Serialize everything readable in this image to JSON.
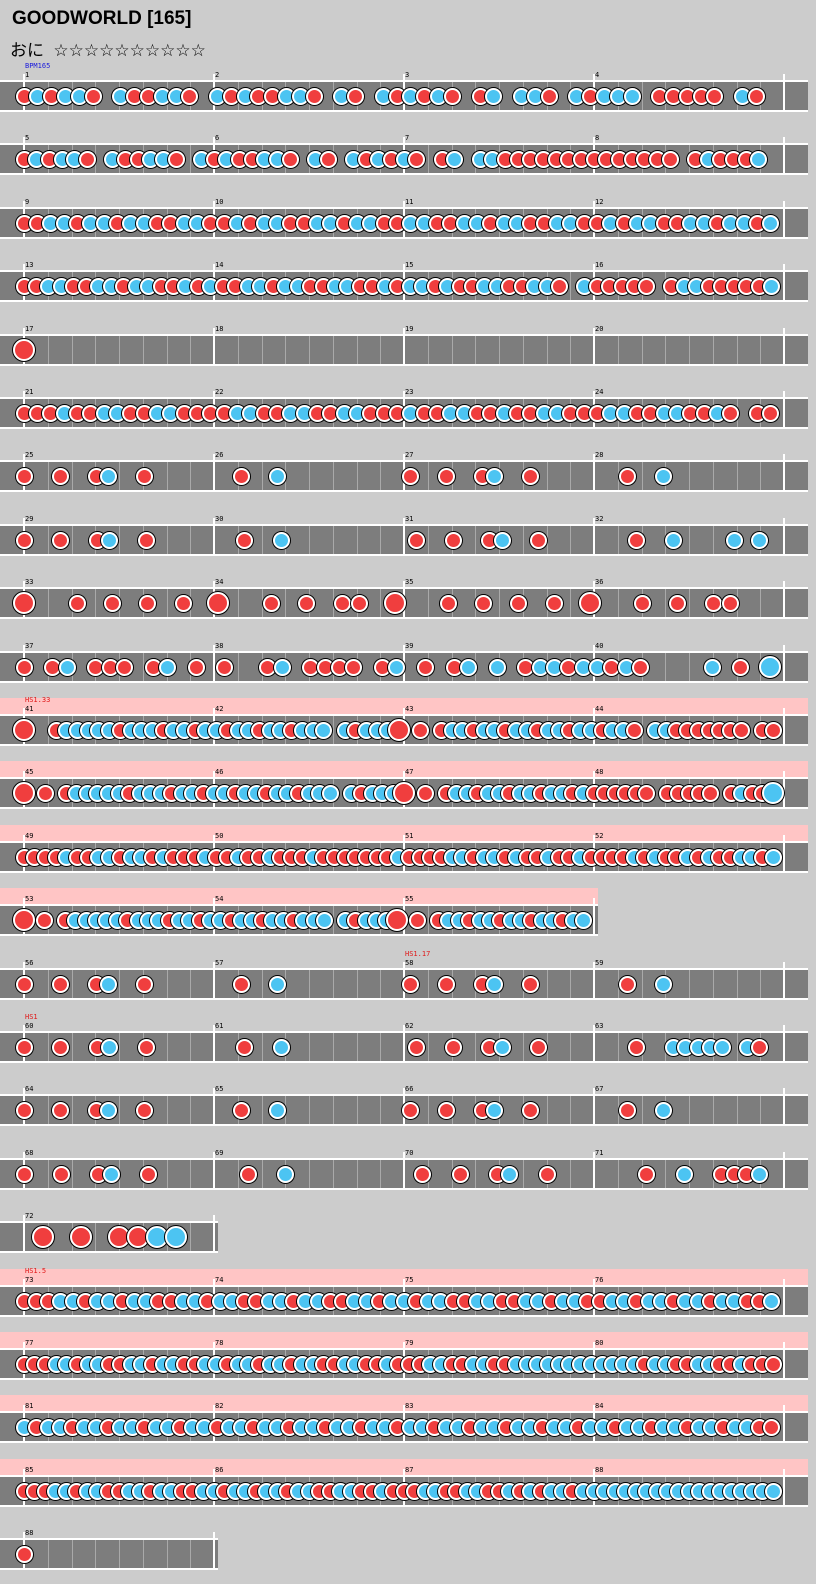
{
  "title": "GOODWORLD [165]",
  "difficulty": "おに",
  "stars": "☆☆☆☆☆☆☆☆☆☆",
  "colors": {
    "don": "#f03e3e",
    "ka": "#4cc4f2",
    "lane": "#7d7d7d",
    "hs_band": "#ffc5c5",
    "bpm_text": "#1a1adb",
    "hs_text": "#e01818"
  },
  "tags": [
    {
      "row": 0,
      "text": "BPM165",
      "color": "#1a1adb"
    },
    {
      "row": 10,
      "text": "HS1.33",
      "color": "#e01818"
    },
    {
      "row": 14,
      "text": "HS1.17",
      "color": "#e01818",
      "measure": 2
    },
    {
      "row": 15,
      "text": "HS1",
      "color": "#e01818"
    },
    {
      "row": 19,
      "text": "HS1.5",
      "color": "#e01818"
    }
  ],
  "rows": [
    {
      "measures": 4,
      "labels": [
        "1",
        "2",
        "3",
        "4"
      ],
      "hs": false,
      "pattern": "d k d k k d . k d d k k d . k d k d d k k d . k d . k d k d k d . d k . k k d . k d k k k . d d d d d . k d ."
    },
    {
      "measures": 4,
      "labels": [
        "5",
        "6",
        "7",
        "8"
      ],
      "hs": false,
      "pattern": "d k d k k d . k d d k k d . k d k d d k k d . k d . k d k d k d . d k . k k d d d d d d d d d d d d d d . d k d d d k ."
    },
    {
      "measures": 4,
      "labels": [
        "9",
        "10",
        "11",
        "12"
      ],
      "hs": false,
      "pattern": "d d k k d k k d k k d d k k d d k d k k d d k k d k k d d k k d d k k d k k d d k k d d k d k k d d k k d k k d k"
    },
    {
      "measures": 4,
      "labels": [
        "13",
        "14",
        "15",
        "16"
      ],
      "hs": false,
      "pattern": "d d k k d d k k d k k d d k d k d d k k d k k d d k k d d k d k k d k d d k k d d k k d . k d d d d d . d k k d d d d d k"
    },
    {
      "measures": 4,
      "labels": [
        "17",
        "18",
        "19",
        "20"
      ],
      "hs": false,
      "pattern": "D . . . . . . . . . . . . . . . . . . . . . . . . . . . . . . ."
    },
    {
      "measures": 4,
      "labels": [
        "21",
        "22",
        "23",
        "24"
      ],
      "hs": false,
      "pattern": "d d d k d d k k d d k k d d d d k k d d k k d d k k d d d k d d k k d d k d d k k d d d k k d d k k d d k d . d d"
    },
    {
      "measures": 4,
      "labels": [
        "25",
        "26",
        "27",
        "28"
      ],
      "hs": false,
      "pattern": "d . . d . . d k . . d . . . . . . . d . . k . . . . . . . . . . d . . d . . d k . . d . . . . . . . d . . k . . . . . . . . ."
    },
    {
      "measures": 4,
      "labels": [
        "29",
        "30",
        "31",
        "32"
      ],
      "hs": false,
      "pattern": "d . . d . . d k . . d . . . . . . . d . . k . . . . . . . . . . d . . d . . d k . . d . . . . . . . d . . k . . . . k . k ."
    },
    {
      "measures": 4,
      "labels": [
        "33",
        "34",
        "35",
        "36"
      ],
      "hs": false,
      "pattern": "D . . d . d . d . d . D . . d . d . d d . D . . d . d . d . d . D . . d . d . d d . ."
    },
    {
      "measures": 4,
      "labels": [
        "37",
        "38",
        "39",
        "40"
      ],
      "hs": false,
      "pattern": "d . d k . d d d . d k . d . d . . d k . d d d d . d k . d . d k . k . d k k d k k d k d . . . . k . d . K"
    },
    {
      "measures": 4,
      "labels": [
        "41",
        "42",
        "43",
        "44"
      ],
      "hs": true,
      "pattern": "D . . d k k k k k d k k k d k k d k k d k k d k k d k k k . k d k k k D . d . d k k d k k d k k d k k d k k d k k d . k k d d d d d d d . d d"
    },
    {
      "measures": 4,
      "labels": [
        "45",
        "46",
        "47",
        "48"
      ],
      "hs": true,
      "pattern": "D . d . d k k k k k d k k k d k k d k k d k k d k k d k k k . k d k k k D . d . d k k d k k d k k d k k d k d d d d d d . d d d d d . d k d d K"
    },
    {
      "measures": 4,
      "labels": [
        "49",
        "50",
        "51",
        "52"
      ],
      "hs": true,
      "pattern": "d d d d k d d k k d k k d k d d d k d d k d d k d d d k d d d d d d d k d d d d k k d k k d k d d k d d k d d d d k d k d d k d k d d k k d k"
    },
    {
      "measures": 3,
      "labels": [
        "53",
        "54",
        "55"
      ],
      "hs": true,
      "pattern": "D . d . d k k k k k d k k k d k k d k k d k k d k k d k k k . k d k k k D . d . d k k d k k d k k d k k d k k"
    },
    {
      "measures": 4,
      "labels": [
        "56",
        "57",
        "58",
        "59"
      ],
      "hs": false,
      "pattern": "d . . d . . d k . . d . . . . . . . d . . k . . . . . . . . . . d . . d . . d k . . d . . . . . . . d . . k . . . . . . . . ."
    },
    {
      "measures": 4,
      "labels": [
        "60",
        "61",
        "62",
        "63"
      ],
      "hs": false,
      "pattern": "d . . d . . d k . . d . . . . . . . d . . k . . . . . . . . . . d . . d . . d k . . d . . . . . . . d . . k k k k k . k d ."
    },
    {
      "measures": 4,
      "labels": [
        "64",
        "65",
        "66",
        "67"
      ],
      "hs": false,
      "pattern": "d . . d . . d k . . d . . . . . . . d . . k . . . . . . . . . . d . . d . . d k . . d . . . . . . . d . . k . . . . . . . . ."
    },
    {
      "measures": 4,
      "labels": [
        "68",
        "69",
        "70",
        "71"
      ],
      "hs": false,
      "pattern": "d . . d . . d k . . d . . . . . . . d . . k . . . . . . . . . . d . . d . . d k . . d . . . . . . . d . . k . . d d d k ."
    },
    {
      "measures": 1,
      "labels": [
        "72"
      ],
      "hs": false,
      "pattern": ". D . D . D D K K ."
    },
    {
      "measures": 4,
      "labels": [
        "73",
        "74",
        "75",
        "76"
      ],
      "hs": true,
      "pattern": "d d d k k d k k d k k d d k k d k k d d k k d k k d d k k d k k d k k d d k k d d k k d k k d d k k d k k d k k d k k d d k"
    },
    {
      "measures": 4,
      "labels": [
        "77",
        "78",
        "79",
        "80"
      ],
      "hs": true,
      "pattern": "d d d k k d k k d d k k d k k d d k k d k k d k k d k k d d k k d d k d d d k k d d k k d d k k k k k k k k k k k k d k k d d k k d d k d d d"
    },
    {
      "measures": 4,
      "labels": [
        "81",
        "82",
        "83",
        "84"
      ],
      "hs": true,
      "pattern": "k d k k d k k d k k d k k d k k d k k d k k d k k d k k d k k d k k d k k d k k d k k d k k d k k d k k d k k d k k d k k d d"
    },
    {
      "measures": 4,
      "labels": [
        "85",
        "86",
        "87",
        "88"
      ],
      "hs": true,
      "pattern": "d d d k k d k k d d k k d k k d d k k d k k d k k d k k d d k k d d k d d d k k d d k k d d k d k d k k d k k k k k k k k k k k k k k k k k k k"
    },
    {
      "measures": 1,
      "labels": [
        "88"
      ],
      "hs": false,
      "pattern": "d . . . . . . . . ."
    }
  ]
}
